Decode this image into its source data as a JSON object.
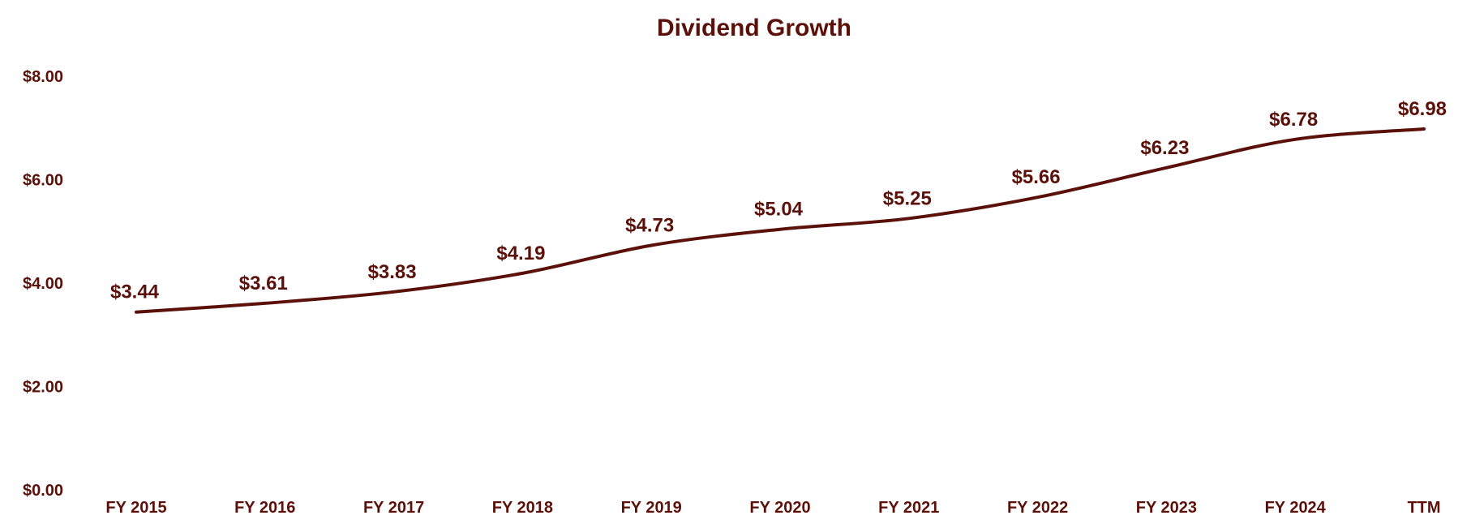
{
  "chart_data": {
    "type": "line",
    "title": "Dividend Growth",
    "xlabel": "",
    "ylabel": "",
    "categories": [
      "FY 2015",
      "FY 2016",
      "FY 2017",
      "FY 2018",
      "FY 2019",
      "FY 2020",
      "FY 2021",
      "FY 2022",
      "FY 2023",
      "FY 2024",
      "TTM"
    ],
    "series": [
      {
        "name": "Dividend",
        "values": [
          3.44,
          3.61,
          3.83,
          4.19,
          4.73,
          5.04,
          5.25,
          5.66,
          6.23,
          6.78,
          6.98
        ]
      }
    ],
    "data_labels": [
      "$3.44",
      "$3.61",
      "$3.83",
      "$4.19",
      "$4.73",
      "$5.04",
      "$5.25",
      "$5.66",
      "$6.23",
      "$6.78",
      "$6.98"
    ],
    "y_ticks": [
      0,
      2,
      4,
      6,
      8
    ],
    "y_tick_labels": [
      "$0.00",
      "$2.00",
      "$4.00",
      "$6.00",
      "$8.00"
    ],
    "ylim": [
      0,
      8
    ],
    "grid": false,
    "legend": "none",
    "colors": {
      "line": "#5b1109",
      "text": "#5b1109",
      "background": "#ffffff"
    }
  }
}
